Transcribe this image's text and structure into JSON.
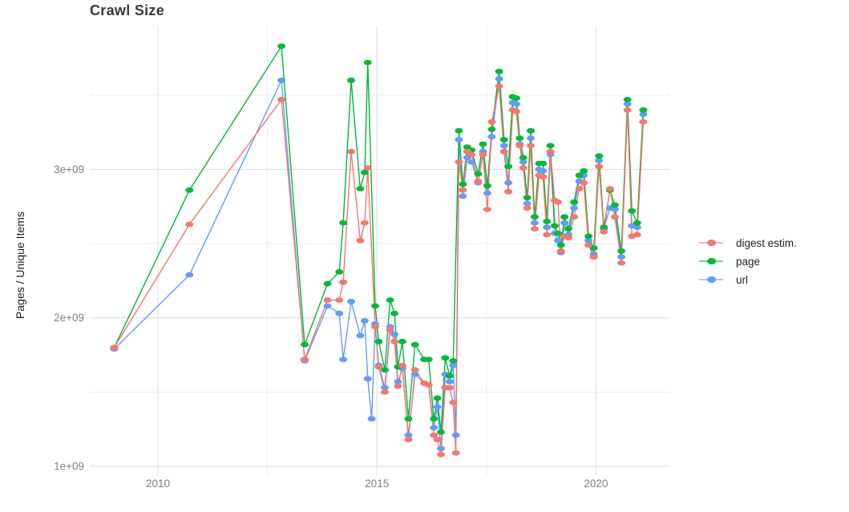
{
  "page_title": "Crawl Size",
  "chart_data": {
    "type": "line",
    "title": "Crawl Size",
    "xlabel": "",
    "ylabel": "Pages / Unique Items",
    "values_unit": "1e9 (y values given in billions)",
    "grid": true,
    "legend_position": "right",
    "x_axis": {
      "major_ticks": [
        2010,
        2015,
        2020
      ],
      "tick_labels": [
        "2010",
        "2015",
        "2020"
      ],
      "minor_gridlines": [
        2012.5,
        2017.5
      ],
      "range": [
        2008.4,
        2021.7
      ]
    },
    "y_axis": {
      "major_ticks": [
        1,
        2,
        3
      ],
      "tick_labels": [
        "1e+09",
        "2e+09",
        "3e+09"
      ],
      "minor_gridlines": [
        1.5,
        2.5,
        3.5
      ],
      "range": [
        0.95,
        3.98
      ]
    },
    "series": [
      {
        "name": "url",
        "color": "#619CFF",
        "points": [
          [
            2009.0,
            1.79
          ],
          [
            2010.72,
            2.29
          ],
          [
            2012.82,
            3.6
          ],
          [
            2013.35,
            1.71
          ],
          [
            2013.87,
            2.08
          ],
          [
            2014.14,
            2.03
          ],
          [
            2014.23,
            1.72
          ],
          [
            2014.41,
            2.11
          ],
          [
            2014.62,
            1.88
          ],
          [
            2014.72,
            1.98
          ],
          [
            2014.79,
            1.59
          ],
          [
            2014.88,
            1.32
          ],
          [
            2014.96,
            1.96
          ],
          [
            2015.04,
            1.68
          ],
          [
            2015.18,
            1.53
          ],
          [
            2015.3,
            1.94
          ],
          [
            2015.4,
            1.89
          ],
          [
            2015.48,
            1.57
          ],
          [
            2015.58,
            1.66
          ],
          [
            2015.72,
            1.21
          ],
          [
            2015.87,
            1.62
          ],
          [
            2016.08,
            1.56
          ],
          [
            2016.18,
            1.55
          ],
          [
            2016.3,
            1.26
          ],
          [
            2016.38,
            1.4
          ],
          [
            2016.46,
            1.12
          ],
          [
            2016.56,
            1.62
          ],
          [
            2016.66,
            1.57
          ],
          [
            2016.74,
            1.68
          ],
          [
            2016.8,
            1.21
          ],
          [
            2016.87,
            3.2
          ],
          [
            2016.96,
            2.82
          ],
          [
            2017.06,
            3.08
          ],
          [
            2017.16,
            3.05
          ],
          [
            2017.31,
            2.91
          ],
          [
            2017.42,
            3.12
          ],
          [
            2017.52,
            2.84
          ],
          [
            2017.62,
            3.22
          ],
          [
            2017.79,
            3.61
          ],
          [
            2017.9,
            3.16
          ],
          [
            2018.0,
            2.91
          ],
          [
            2018.1,
            3.45
          ],
          [
            2018.18,
            3.44
          ],
          [
            2018.26,
            3.17
          ],
          [
            2018.34,
            3.05
          ],
          [
            2018.43,
            2.77
          ],
          [
            2018.51,
            3.21
          ],
          [
            2018.6,
            2.64
          ],
          [
            2018.7,
            3.0
          ],
          [
            2018.79,
            2.99
          ],
          [
            2018.88,
            2.61
          ],
          [
            2018.96,
            3.1
          ],
          [
            2019.06,
            2.57
          ],
          [
            2019.13,
            2.52
          ],
          [
            2019.2,
            2.44
          ],
          [
            2019.28,
            2.64
          ],
          [
            2019.37,
            2.56
          ],
          [
            2019.5,
            2.74
          ],
          [
            2019.62,
            2.92
          ],
          [
            2019.72,
            2.96
          ],
          [
            2019.83,
            2.52
          ],
          [
            2019.95,
            2.43
          ],
          [
            2020.07,
            3.06
          ],
          [
            2020.18,
            2.6
          ],
          [
            2020.32,
            2.74
          ],
          [
            2020.43,
            2.73
          ],
          [
            2020.58,
            2.41
          ],
          [
            2020.72,
            3.44
          ],
          [
            2020.82,
            2.62
          ],
          [
            2020.94,
            2.61
          ],
          [
            2021.08,
            3.37
          ]
        ]
      },
      {
        "name": "page",
        "color": "#00BA38",
        "points": [
          [
            2009.0,
            1.8
          ],
          [
            2010.72,
            2.86
          ],
          [
            2012.82,
            3.83
          ],
          [
            2013.35,
            1.82
          ],
          [
            2013.87,
            2.23
          ],
          [
            2014.14,
            2.31
          ],
          [
            2014.23,
            2.64
          ],
          [
            2014.41,
            3.6
          ],
          [
            2014.62,
            2.87
          ],
          [
            2014.72,
            2.98
          ],
          [
            2014.79,
            3.72
          ],
          [
            2014.96,
            2.08
          ],
          [
            2015.04,
            1.84
          ],
          [
            2015.18,
            1.65
          ],
          [
            2015.3,
            2.12
          ],
          [
            2015.4,
            2.03
          ],
          [
            2015.48,
            1.67
          ],
          [
            2015.58,
            1.84
          ],
          [
            2015.72,
            1.32
          ],
          [
            2015.87,
            1.82
          ],
          [
            2016.08,
            1.72
          ],
          [
            2016.18,
            1.72
          ],
          [
            2016.3,
            1.32
          ],
          [
            2016.38,
            1.46
          ],
          [
            2016.46,
            1.23
          ],
          [
            2016.56,
            1.73
          ],
          [
            2016.66,
            1.61
          ],
          [
            2016.74,
            1.71
          ],
          [
            2016.87,
            3.26
          ],
          [
            2016.96,
            2.9
          ],
          [
            2017.06,
            3.15
          ],
          [
            2017.16,
            3.13
          ],
          [
            2017.31,
            2.97
          ],
          [
            2017.42,
            3.17
          ],
          [
            2017.52,
            2.89
          ],
          [
            2017.62,
            3.27
          ],
          [
            2017.79,
            3.66
          ],
          [
            2017.9,
            3.2
          ],
          [
            2018.0,
            3.02
          ],
          [
            2018.1,
            3.49
          ],
          [
            2018.18,
            3.48
          ],
          [
            2018.26,
            3.21
          ],
          [
            2018.34,
            3.08
          ],
          [
            2018.43,
            2.81
          ],
          [
            2018.51,
            3.26
          ],
          [
            2018.6,
            2.68
          ],
          [
            2018.7,
            3.04
          ],
          [
            2018.79,
            3.04
          ],
          [
            2018.88,
            2.65
          ],
          [
            2018.96,
            3.16
          ],
          [
            2019.06,
            2.62
          ],
          [
            2019.13,
            2.57
          ],
          [
            2019.2,
            2.49
          ],
          [
            2019.28,
            2.68
          ],
          [
            2019.37,
            2.6
          ],
          [
            2019.5,
            2.78
          ],
          [
            2019.62,
            2.96
          ],
          [
            2019.72,
            2.99
          ],
          [
            2019.83,
            2.55
          ],
          [
            2019.95,
            2.47
          ],
          [
            2020.07,
            3.09
          ],
          [
            2020.18,
            2.61
          ],
          [
            2020.32,
            2.86
          ],
          [
            2020.43,
            2.76
          ],
          [
            2020.58,
            2.45
          ],
          [
            2020.72,
            3.47
          ],
          [
            2020.82,
            2.72
          ],
          [
            2020.94,
            2.64
          ],
          [
            2021.08,
            3.4
          ]
        ]
      },
      {
        "name": "digest estim.",
        "color": "#F8766D",
        "points": [
          [
            2009.0,
            1.8
          ],
          [
            2010.72,
            2.63
          ],
          [
            2012.82,
            3.47
          ],
          [
            2013.35,
            1.72
          ],
          [
            2013.87,
            2.12
          ],
          [
            2014.14,
            2.12
          ],
          [
            2014.23,
            2.24
          ],
          [
            2014.41,
            3.12
          ],
          [
            2014.62,
            2.52
          ],
          [
            2014.72,
            2.64
          ],
          [
            2014.79,
            3.01
          ],
          [
            2014.96,
            1.94
          ],
          [
            2015.04,
            1.67
          ],
          [
            2015.18,
            1.5
          ],
          [
            2015.3,
            1.92
          ],
          [
            2015.4,
            1.84
          ],
          [
            2015.48,
            1.54
          ],
          [
            2015.58,
            1.68
          ],
          [
            2015.72,
            1.18
          ],
          [
            2015.87,
            1.65
          ],
          [
            2016.08,
            1.56
          ],
          [
            2016.18,
            1.55
          ],
          [
            2016.3,
            1.21
          ],
          [
            2016.38,
            1.18
          ],
          [
            2016.46,
            1.08
          ],
          [
            2016.56,
            1.53
          ],
          [
            2016.66,
            1.53
          ],
          [
            2016.74,
            1.43
          ],
          [
            2016.8,
            1.09
          ],
          [
            2016.87,
            3.05
          ],
          [
            2016.96,
            2.86
          ],
          [
            2017.06,
            3.12
          ],
          [
            2017.16,
            3.1
          ],
          [
            2017.31,
            2.92
          ],
          [
            2017.42,
            3.1
          ],
          [
            2017.52,
            2.73
          ],
          [
            2017.62,
            3.32
          ],
          [
            2017.79,
            3.56
          ],
          [
            2017.9,
            3.12
          ],
          [
            2018.0,
            2.85
          ],
          [
            2018.1,
            3.4
          ],
          [
            2018.18,
            3.39
          ],
          [
            2018.26,
            3.16
          ],
          [
            2018.34,
            3.01
          ],
          [
            2018.43,
            2.74
          ],
          [
            2018.51,
            3.16
          ],
          [
            2018.6,
            2.6
          ],
          [
            2018.7,
            2.96
          ],
          [
            2018.79,
            2.95
          ],
          [
            2018.88,
            2.56
          ],
          [
            2018.96,
            3.12
          ],
          [
            2019.06,
            2.79
          ],
          [
            2019.13,
            2.78
          ],
          [
            2019.2,
            2.45
          ],
          [
            2019.28,
            2.55
          ],
          [
            2019.37,
            2.54
          ],
          [
            2019.5,
            2.68
          ],
          [
            2019.62,
            2.87
          ],
          [
            2019.72,
            2.91
          ],
          [
            2019.83,
            2.49
          ],
          [
            2019.95,
            2.41
          ],
          [
            2020.07,
            3.02
          ],
          [
            2020.18,
            2.58
          ],
          [
            2020.32,
            2.87
          ],
          [
            2020.43,
            2.68
          ],
          [
            2020.58,
            2.37
          ],
          [
            2020.72,
            3.4
          ],
          [
            2020.82,
            2.55
          ],
          [
            2020.94,
            2.56
          ],
          [
            2021.08,
            3.32
          ]
        ]
      }
    ],
    "legend_order": [
      "digest estim.",
      "page",
      "url"
    ]
  },
  "style": {
    "gridline_major_color": "#e4e4e4",
    "gridline_minor_color": "#ececec",
    "tick_label_color": "#7e7e7e",
    "title_color": "#3a3a3a",
    "background": "#ffffff"
  }
}
